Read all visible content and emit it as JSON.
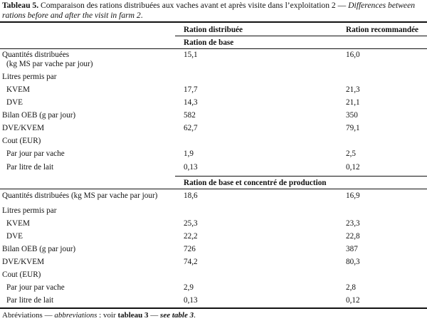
{
  "caption": {
    "label": "Tableau 5.",
    "text_fr": "Comparaison des rations distribuées aux vaches avant et après visite dans l’exploitation 2 — ",
    "text_en": "Differences between rations before and after the visit in farm 2",
    "end": "."
  },
  "columns": {
    "distributed": "Ration distribuée",
    "recommended": "Ration recommandée"
  },
  "sections": [
    {
      "title": "Ration de base",
      "rows": [
        {
          "label": "Quantités distribuées",
          "label2": "(kg MS par vache par jour)",
          "d": "15,1",
          "r": "16,0"
        },
        {
          "label": "Litres permis par",
          "d": "",
          "r": ""
        },
        {
          "label": "KVEM",
          "d": "17,7",
          "r": "21,3"
        },
        {
          "label": "DVE",
          "d": "14,3",
          "r": "21,1"
        },
        {
          "label": "Bilan OEB (g par jour)",
          "d": "582",
          "r": "350"
        },
        {
          "label": "DVE/KVEM",
          "d": "62,7",
          "r": "79,1"
        },
        {
          "label": "Cout (EUR)",
          "d": "",
          "r": ""
        },
        {
          "label": "Par jour par vache",
          "d": "1,9",
          "r": "2,5"
        },
        {
          "label": "Par litre de lait",
          "d": "0,13",
          "r": "0,12"
        }
      ]
    },
    {
      "title": "Ration de base et concentré de production",
      "rows": [
        {
          "label": "Quantités distribuées (kg MS par vache par jour)",
          "d": "18,6",
          "r": "16,9"
        },
        {
          "label": "Litres permis par",
          "d": "",
          "r": ""
        },
        {
          "label": "KVEM",
          "d": "25,3",
          "r": "23,3"
        },
        {
          "label": "DVE",
          "d": "22,2",
          "r": "22,8"
        },
        {
          "label": "Bilan OEB (g par jour)",
          "d": "726",
          "r": "387"
        },
        {
          "label": "DVE/KVEM",
          "d": "74,2",
          "r": "80,3"
        },
        {
          "label": "Cout (EUR)",
          "d": "",
          "r": ""
        },
        {
          "label": "Par jour par vache",
          "d": "2,9",
          "r": "2,8"
        },
        {
          "label": "Par litre de lait",
          "d": "0,13",
          "r": "0,12"
        }
      ]
    }
  ],
  "footnote": {
    "a": "Abréviations — ",
    "b": "abbreviations",
    "c": " : voir ",
    "d": "tableau 3",
    "e": " — ",
    "f": "see table 3",
    "g": "."
  }
}
